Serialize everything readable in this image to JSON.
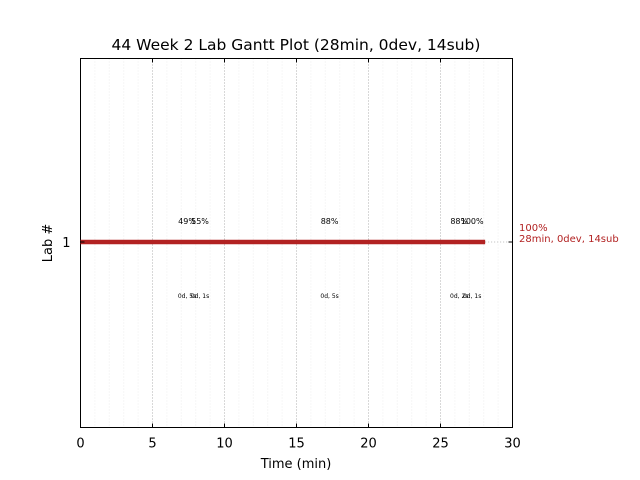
{
  "chart_data": {
    "type": "gantt",
    "title": "44 Week 2 Lab Gantt Plot (28min, 0dev, 14sub)",
    "xlabel": "Time (min)",
    "ylabel": "Lab #",
    "xlim": [
      0,
      30
    ],
    "x_ticks": [
      "0",
      "5",
      "10",
      "15",
      "20",
      "25",
      "30"
    ],
    "y_ticks": [
      "1"
    ],
    "grid": "vertical dotted",
    "bar": {
      "lab": 1,
      "start": 0,
      "end": 28.1,
      "color": "#b22222",
      "end_label_line1": "100%",
      "end_label_line2": "28min, 0dev, 14sub"
    },
    "annotations": [
      {
        "x": 7.4,
        "above": "49%",
        "below": "0d, 5s"
      },
      {
        "x": 8.3,
        "above": "55%",
        "below": "0d, 1s"
      },
      {
        "x": 17.3,
        "above": "88%",
        "below": "0d, 5s"
      },
      {
        "x": 26.3,
        "above": "88%",
        "below": "0d, 2s"
      },
      {
        "x": 27.2,
        "above": "100%",
        "below": "0d, 1s"
      }
    ]
  }
}
